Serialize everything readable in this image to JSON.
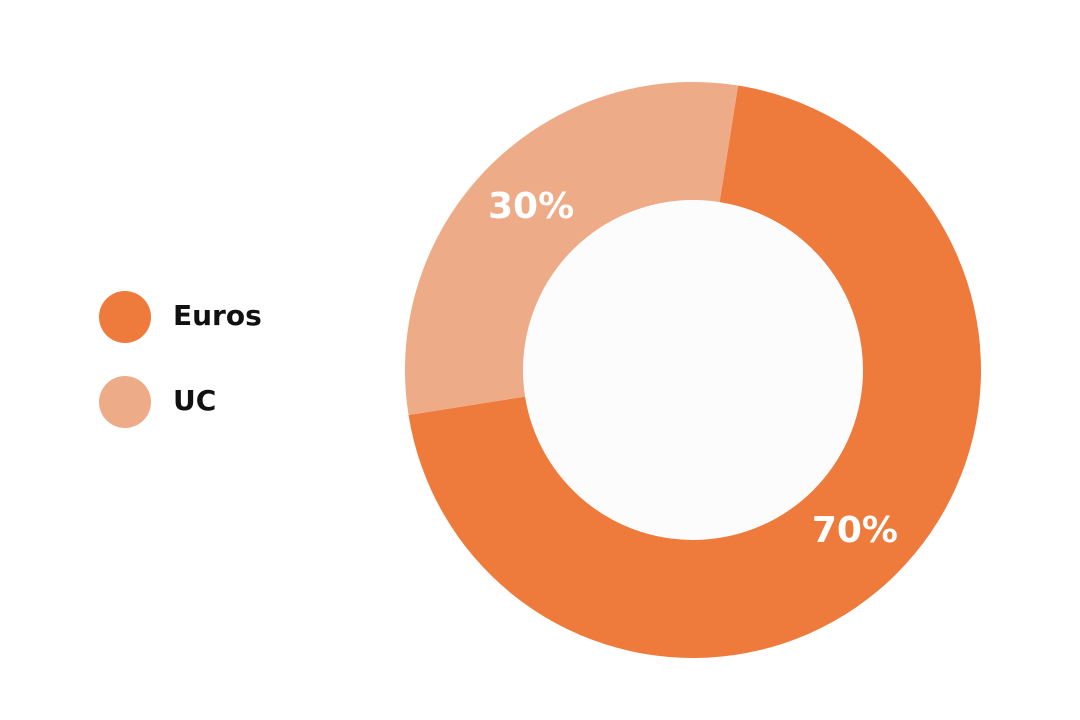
{
  "chart_data": {
    "type": "donut",
    "categories": [
      "Euros",
      "UC"
    ],
    "values": [
      70,
      30
    ],
    "value_labels": [
      "70%",
      "30%"
    ],
    "colors": [
      "#ee7a3c",
      "#eeab87"
    ]
  }
}
